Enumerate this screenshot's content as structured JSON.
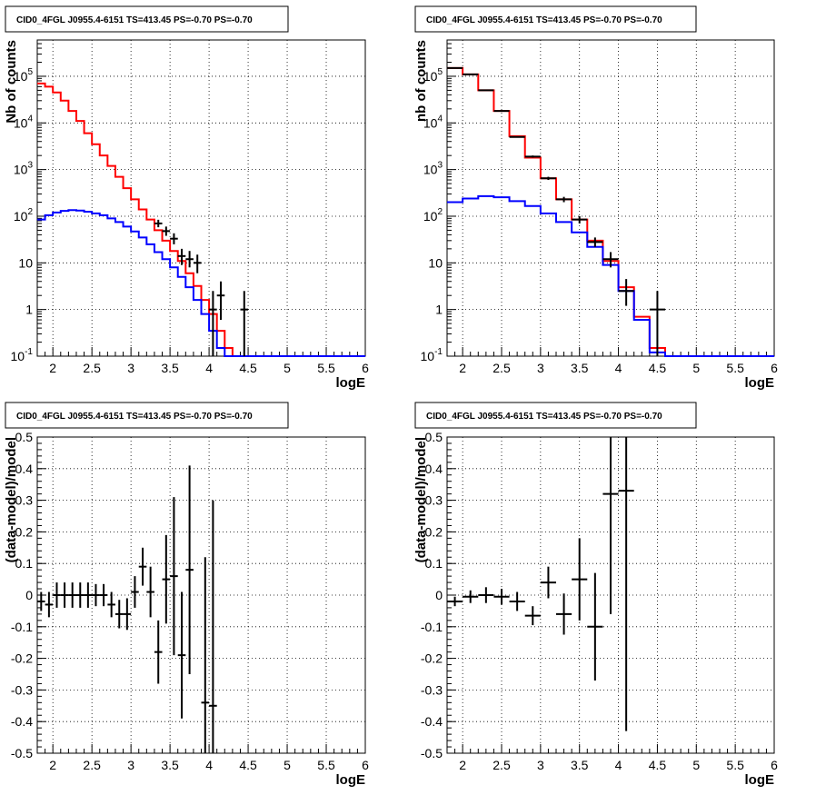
{
  "chart_data": [
    {
      "type": "histogram",
      "title": "CID0_4FGL J0955.4-6151 TS=413.45 PS=-0.70 PS=-0.70",
      "xlabel": "logE",
      "ylabel": "Nb of counts",
      "xlim": [
        1.8,
        6.0
      ],
      "ylim": [
        0.1,
        600000
      ],
      "yscale": "log",
      "grid": true,
      "x_ticks": [
        "2",
        "2.5",
        "3",
        "3.5",
        "4",
        "4.5",
        "5",
        "5.5",
        "6"
      ],
      "y_ticks": [
        "10^-1",
        "1",
        "10",
        "10^2",
        "10^3",
        "10^4",
        "10^5"
      ],
      "bin_edges": [
        1.8,
        1.9,
        2.0,
        2.1,
        2.2,
        2.3,
        2.4,
        2.5,
        2.6,
        2.7,
        2.8,
        2.9,
        3.0,
        3.1,
        3.2,
        3.3,
        3.4,
        3.5,
        3.6,
        3.7,
        3.8,
        3.9,
        4.0,
        4.1,
        4.2,
        4.3,
        4.4,
        4.5,
        4.6,
        4.7,
        4.8,
        4.9,
        5.0,
        5.1,
        5.2,
        5.3,
        5.4,
        5.5,
        5.6,
        5.7,
        5.8,
        5.9,
        6.0
      ],
      "series": [
        {
          "role": "total-model",
          "color": "#ff0000",
          "values": [
            70000,
            60000,
            45000,
            30000,
            18000,
            11000,
            6000,
            3500,
            2000,
            1200,
            700,
            400,
            230,
            140,
            85,
            50,
            30,
            18,
            11,
            6,
            3.2,
            1.6,
            0.8,
            0.35,
            0.15,
            0.1,
            0.1,
            0.1,
            0.1,
            0.1,
            0.1,
            0.1,
            0.1,
            0.1,
            0.1,
            0.1,
            0.1,
            0.1,
            0.1,
            0.1,
            0.1,
            0.1
          ]
        },
        {
          "role": "component-model",
          "color": "#0000ff",
          "values": [
            85,
            105,
            120,
            130,
            135,
            132,
            125,
            115,
            105,
            90,
            75,
            60,
            47,
            35,
            25,
            17,
            12,
            8,
            5,
            3,
            1.6,
            0.8,
            0.35,
            0.15,
            0.1,
            0.1,
            0.1,
            0.1,
            0.1,
            0.1,
            0.1,
            0.1,
            0.1,
            0.1,
            0.1,
            0.1,
            0.1,
            0.1,
            0.1,
            0.1,
            0.1,
            0.1
          ]
        },
        {
          "role": "data",
          "color": "#000000",
          "points": [
            {
              "x": 3.35,
              "y": 70,
              "lo": 58,
              "hi": 84
            },
            {
              "x": 3.45,
              "y": 48,
              "lo": 38,
              "hi": 60
            },
            {
              "x": 3.55,
              "y": 33,
              "lo": 25,
              "hi": 43
            },
            {
              "x": 3.65,
              "y": 14,
              "lo": 9,
              "hi": 20
            },
            {
              "x": 3.75,
              "y": 12,
              "lo": 8,
              "hi": 18
            },
            {
              "x": 3.85,
              "y": 10,
              "lo": 6,
              "hi": 15
            },
            {
              "x": 4.05,
              "y": 1,
              "lo": 0.1,
              "hi": 2.5
            },
            {
              "x": 4.15,
              "y": 2,
              "lo": 0.6,
              "hi": 4
            },
            {
              "x": 4.45,
              "y": 1,
              "lo": 0.1,
              "hi": 2.5
            }
          ]
        }
      ]
    },
    {
      "type": "histogram",
      "title": "CID0_4FGL J0955.4-6151 TS=413.45 PS=-0.70 PS=-0.70",
      "xlabel": "logE",
      "ylabel": "nb of counts",
      "xlim": [
        1.8,
        6.0
      ],
      "ylim": [
        0.1,
        600000
      ],
      "yscale": "log",
      "grid": true,
      "x_ticks": [
        "2",
        "2.5",
        "3",
        "3.5",
        "4",
        "4.5",
        "5",
        "5.5",
        "6"
      ],
      "y_ticks": [
        "10^-1",
        "1",
        "10",
        "10^2",
        "10^3",
        "10^4",
        "10^5"
      ],
      "bin_edges": [
        1.8,
        2.0,
        2.2,
        2.4,
        2.6,
        2.8,
        3.0,
        3.2,
        3.4,
        3.6,
        3.8,
        4.0,
        4.2,
        4.4,
        4.6,
        4.8,
        5.0,
        5.2,
        5.4,
        5.6,
        5.8,
        6.0
      ],
      "series": [
        {
          "role": "total-model",
          "color": "#ff0000",
          "values": [
            150000,
            110000,
            50000,
            18000,
            5200,
            1800,
            650,
            230,
            85,
            30,
            11,
            3,
            0.7,
            0.15,
            0.1,
            0.1,
            0.1,
            0.1,
            0.1,
            0.1,
            0.1
          ]
        },
        {
          "role": "component-model",
          "color": "#0000ff",
          "values": [
            200,
            240,
            270,
            255,
            210,
            165,
            115,
            75,
            45,
            22,
            9,
            2.5,
            0.6,
            0.12,
            0.1,
            0.1,
            0.1,
            0.1,
            0.1,
            0.1,
            0.1
          ]
        },
        {
          "role": "data",
          "color": "#000000",
          "points": [
            {
              "x": 1.9,
              "y": 150000,
              "lo": 148000,
              "hi": 152000
            },
            {
              "x": 2.1,
              "y": 110000,
              "lo": 108000,
              "hi": 112000
            },
            {
              "x": 2.3,
              "y": 50000,
              "lo": 49000,
              "hi": 51000
            },
            {
              "x": 2.5,
              "y": 18000,
              "lo": 17600,
              "hi": 18400
            },
            {
              "x": 2.7,
              "y": 5000,
              "lo": 4850,
              "hi": 5150
            },
            {
              "x": 2.9,
              "y": 1900,
              "lo": 1800,
              "hi": 2000
            },
            {
              "x": 3.1,
              "y": 650,
              "lo": 600,
              "hi": 700
            },
            {
              "x": 3.3,
              "y": 230,
              "lo": 200,
              "hi": 260
            },
            {
              "x": 3.5,
              "y": 85,
              "lo": 70,
              "hi": 100
            },
            {
              "x": 3.7,
              "y": 28,
              "lo": 22,
              "hi": 35
            },
            {
              "x": 3.9,
              "y": 12,
              "lo": 8,
              "hi": 17
            },
            {
              "x": 4.1,
              "y": 2.5,
              "lo": 1.2,
              "hi": 4.5
            },
            {
              "x": 4.5,
              "y": 1,
              "lo": 0.1,
              "hi": 2.5
            }
          ]
        }
      ]
    },
    {
      "type": "scatter-errorbars",
      "title": "CID0_4FGL J0955.4-6151 TS=413.45 PS=-0.70 PS=-0.70",
      "xlabel": "logE",
      "ylabel": "(data-model)/model",
      "xlim": [
        1.8,
        6.0
      ],
      "ylim": [
        -0.5,
        0.5
      ],
      "grid": true,
      "x_ticks": [
        "2",
        "2.5",
        "3",
        "3.5",
        "4",
        "4.5",
        "5",
        "5.5",
        "6"
      ],
      "y_ticks": [
        "-0.5",
        "-0.4",
        "-0.3",
        "-0.2",
        "-0.1",
        "0",
        "0.1",
        "0.2",
        "0.3",
        "0.4",
        "0.5"
      ],
      "xerr": 0.05,
      "points": [
        {
          "x": 1.85,
          "y": -0.02,
          "yerr": 0.03
        },
        {
          "x": 1.95,
          "y": -0.03,
          "yerr": 0.04
        },
        {
          "x": 2.05,
          "y": 0.0,
          "yerr": 0.04
        },
        {
          "x": 2.15,
          "y": 0.0,
          "yerr": 0.04
        },
        {
          "x": 2.25,
          "y": 0.0,
          "yerr": 0.04
        },
        {
          "x": 2.35,
          "y": 0.0,
          "yerr": 0.04
        },
        {
          "x": 2.45,
          "y": 0.0,
          "yerr": 0.04
        },
        {
          "x": 2.55,
          "y": 0.0,
          "yerr": 0.035
        },
        {
          "x": 2.65,
          "y": 0.0,
          "yerr": 0.035
        },
        {
          "x": 2.75,
          "y": -0.03,
          "yerr": 0.04
        },
        {
          "x": 2.85,
          "y": -0.06,
          "yerr": 0.045
        },
        {
          "x": 2.95,
          "y": -0.06,
          "yerr": 0.05
        },
        {
          "x": 3.05,
          "y": 0.01,
          "yerr": 0.05
        },
        {
          "x": 3.15,
          "y": 0.09,
          "yerr": 0.06
        },
        {
          "x": 3.25,
          "y": 0.01,
          "yerr": 0.08
        },
        {
          "x": 3.35,
          "y": -0.18,
          "yerr": 0.1
        },
        {
          "x": 3.45,
          "y": 0.05,
          "yerr": 0.14
        },
        {
          "x": 3.55,
          "y": 0.06,
          "yerr": 0.25
        },
        {
          "x": 3.65,
          "y": -0.19,
          "yerr": 0.2
        },
        {
          "x": 3.75,
          "y": 0.08,
          "yerr": 0.33
        },
        {
          "x": 3.95,
          "y": -0.34,
          "yerr": 0.46
        },
        {
          "x": 4.05,
          "y": -0.35,
          "yerr": 0.65
        }
      ]
    },
    {
      "type": "scatter-errorbars",
      "title": "CID0_4FGL J0955.4-6151 TS=413.45 PS=-0.70 PS=-0.70",
      "xlabel": "logE",
      "ylabel": "(data-model)/model",
      "xlim": [
        1.8,
        6.0
      ],
      "ylim": [
        -0.5,
        0.5
      ],
      "grid": true,
      "x_ticks": [
        "2",
        "2.5",
        "3",
        "3.5",
        "4",
        "4.5",
        "5",
        "5.5",
        "6"
      ],
      "y_ticks": [
        "-0.5",
        "-0.4",
        "-0.3",
        "-0.2",
        "-0.1",
        "0",
        "0.1",
        "0.2",
        "0.3",
        "0.4",
        "0.5"
      ],
      "xerr": 0.1,
      "points": [
        {
          "x": 1.9,
          "y": -0.02,
          "yerr": 0.015
        },
        {
          "x": 2.1,
          "y": -0.005,
          "yerr": 0.02
        },
        {
          "x": 2.3,
          "y": 0.0,
          "yerr": 0.025
        },
        {
          "x": 2.5,
          "y": -0.005,
          "yerr": 0.025
        },
        {
          "x": 2.7,
          "y": -0.02,
          "yerr": 0.03
        },
        {
          "x": 2.9,
          "y": -0.065,
          "yerr": 0.03
        },
        {
          "x": 3.1,
          "y": 0.04,
          "yerr": 0.05
        },
        {
          "x": 3.3,
          "y": -0.06,
          "yerr": 0.065
        },
        {
          "x": 3.5,
          "y": 0.05,
          "yerr": 0.13
        },
        {
          "x": 3.7,
          "y": -0.1,
          "yerr": 0.17
        },
        {
          "x": 3.9,
          "y": 0.32,
          "yerr": 0.38
        },
        {
          "x": 4.1,
          "y": 0.33,
          "yerr": 0.76
        }
      ]
    }
  ]
}
